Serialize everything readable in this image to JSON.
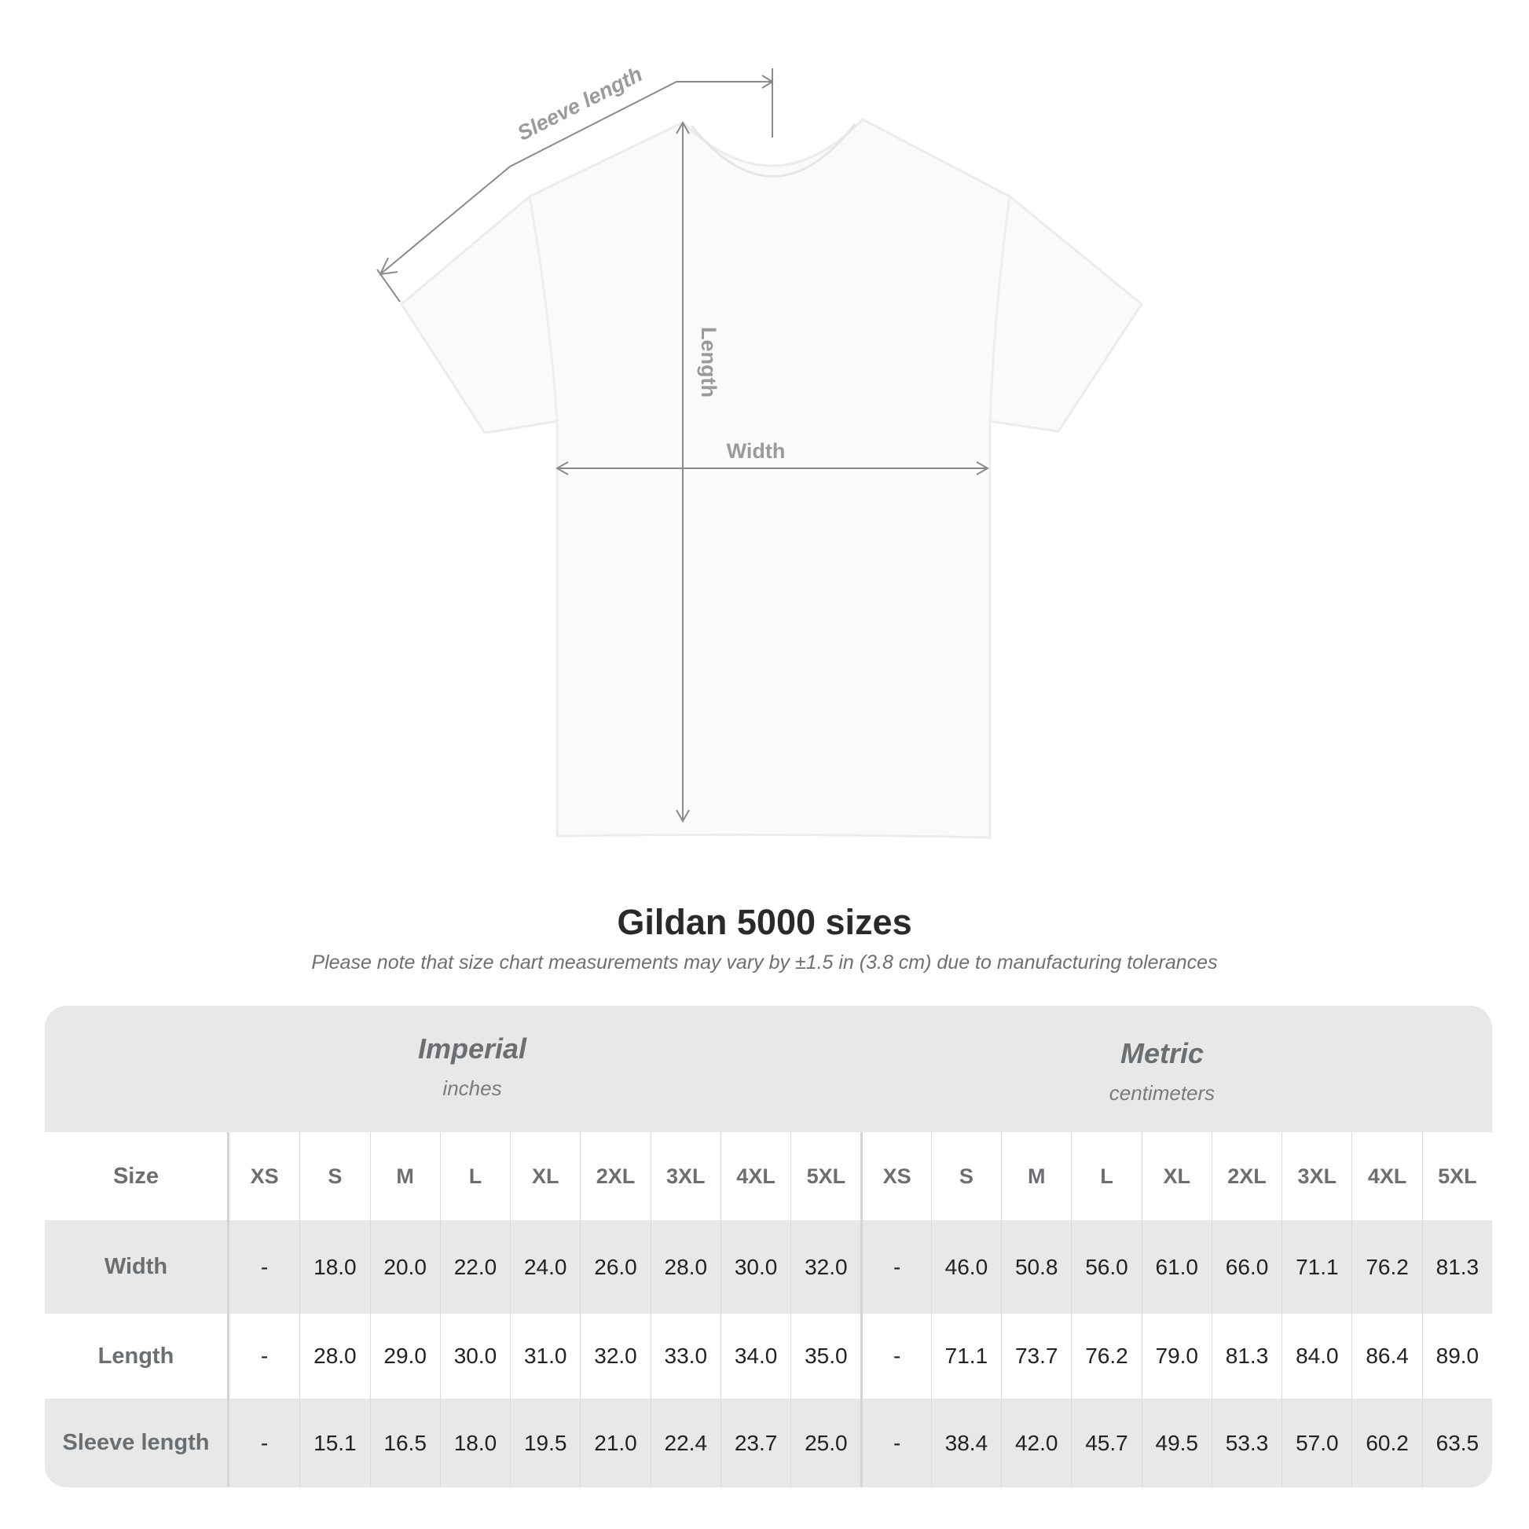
{
  "diagram": {
    "sleeve_label": "Sleeve length",
    "length_label": "Length",
    "width_label": "Width",
    "line_color": "#8a8a8a"
  },
  "title": "Gildan 5000 sizes",
  "note": "Please note that size chart measurements may vary by ±1.5 in (3.8 cm) due to manufacturing tolerances",
  "table": {
    "imperial": {
      "name": "Imperial",
      "unit": "inches"
    },
    "metric": {
      "name": "Metric",
      "unit": "centimeters"
    },
    "size_label": "Size",
    "sizes": [
      "XS",
      "S",
      "M",
      "L",
      "XL",
      "2XL",
      "3XL",
      "4XL",
      "5XL"
    ],
    "rows": [
      {
        "label": "Width",
        "imperial": [
          "-",
          "18.0",
          "20.0",
          "22.0",
          "24.0",
          "26.0",
          "28.0",
          "30.0",
          "32.0"
        ],
        "metric": [
          "-",
          "46.0",
          "50.8",
          "56.0",
          "61.0",
          "66.0",
          "71.1",
          "76.2",
          "81.3"
        ]
      },
      {
        "label": "Length",
        "imperial": [
          "-",
          "28.0",
          "29.0",
          "30.0",
          "31.0",
          "32.0",
          "33.0",
          "34.0",
          "35.0"
        ],
        "metric": [
          "-",
          "71.1",
          "73.7",
          "76.2",
          "79.0",
          "81.3",
          "84.0",
          "86.4",
          "89.0"
        ]
      },
      {
        "label": "Sleeve length",
        "imperial": [
          "-",
          "15.1",
          "16.5",
          "18.0",
          "19.5",
          "21.0",
          "22.4",
          "23.7",
          "25.0"
        ],
        "metric": [
          "-",
          "38.4",
          "42.0",
          "45.7",
          "49.5",
          "53.3",
          "57.0",
          "60.2",
          "63.5"
        ]
      }
    ]
  }
}
